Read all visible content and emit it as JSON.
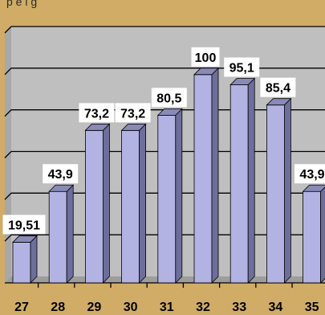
{
  "caption": "p      e  l        g",
  "colors": {
    "background": "#d0ac66",
    "plot_area": "#bfbfbf",
    "bar_face": "#b3b3e3",
    "bar_side": "#6e6e9c",
    "bar_top": "#8a8ab8",
    "label_box": "#ffffff",
    "gridline": "#000000"
  },
  "chart_data": {
    "type": "bar",
    "categories": [
      "27",
      "28",
      "29",
      "30",
      "31",
      "32",
      "33",
      "34",
      "35"
    ],
    "values": [
      19.51,
      43.9,
      73.2,
      73.2,
      80.5,
      100,
      95.1,
      85.4,
      43.9
    ],
    "data_labels": [
      "19,51",
      "43,9",
      "73,2",
      "73,2",
      "80,5",
      "100",
      "95,1",
      "85,4",
      "43,9"
    ],
    "ylim": [
      0,
      120
    ],
    "grid": true,
    "title": "",
    "xlabel": "",
    "ylabel": ""
  }
}
